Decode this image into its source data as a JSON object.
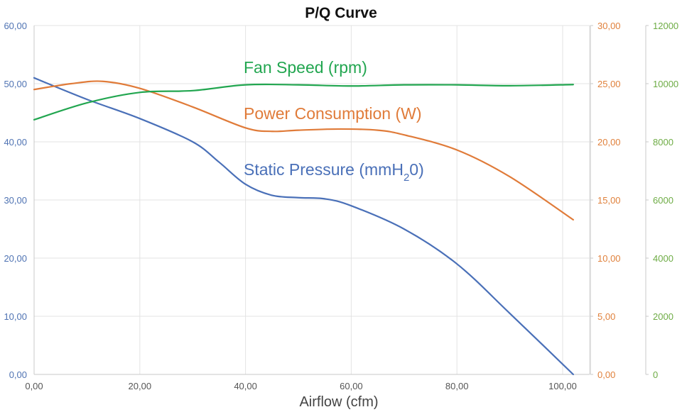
{
  "chart_data": {
    "type": "line",
    "title": "P/Q Curve",
    "xlabel": "Airflow (cfm)",
    "xlim": [
      0,
      105
    ],
    "x_ticks": [
      "0,00",
      "20,00",
      "40,00",
      "60,00",
      "80,00",
      "100,00"
    ],
    "x_tick_values": [
      0,
      20,
      40,
      60,
      80,
      100
    ],
    "grid": true,
    "legend": "inline labels",
    "axes": {
      "left": {
        "ylim": [
          0,
          60
        ],
        "ticks": [
          "0,00",
          "10,00",
          "20,00",
          "30,00",
          "40,00",
          "50,00",
          "60,00"
        ],
        "tick_values": [
          0,
          10,
          20,
          30,
          40,
          50,
          60
        ],
        "color": "#4f73b3"
      },
      "right1": {
        "ylim": [
          0,
          30
        ],
        "ticks": [
          "0,00",
          "5,00",
          "10,00",
          "15,00",
          "20,00",
          "25,00",
          "30,00"
        ],
        "tick_values": [
          0,
          5,
          10,
          15,
          20,
          25,
          30
        ],
        "color": "#e0813c"
      },
      "right2": {
        "ylim": [
          0,
          12000
        ],
        "ticks": [
          "0",
          "2000",
          "4000",
          "6000",
          "8000",
          "10000",
          "12000"
        ],
        "tick_values": [
          0,
          2000,
          4000,
          6000,
          8000,
          10000,
          12000
        ],
        "color": "#6eac45"
      }
    },
    "series": [
      {
        "name": "Static Pressure (mmH20)",
        "label_main": "Static Pressure (mmH",
        "label_sub": "2",
        "label_tail": "0)",
        "axis": "left",
        "color": "#4a70b8",
        "x": [
          0,
          10,
          20,
          30,
          35,
          40,
          45,
          50,
          55,
          60,
          70,
          80,
          90,
          102
        ],
        "y": [
          51,
          47.3,
          44,
          40,
          36.5,
          32.7,
          30.8,
          30.4,
          30.2,
          29,
          25,
          19,
          10.5,
          0
        ]
      },
      {
        "name": "Power Consumption (W)",
        "label_main": "Power Consumption (W)",
        "axis": "right1",
        "color": "#e07b39",
        "x": [
          0,
          7,
          13,
          20,
          30,
          40,
          45,
          50,
          58,
          65,
          70,
          80,
          90,
          102
        ],
        "y": [
          24.5,
          25.0,
          25.2,
          24.6,
          23.0,
          21.2,
          20.9,
          21.0,
          21.1,
          21.0,
          20.6,
          19.3,
          17.0,
          13.3
        ]
      },
      {
        "name": "Fan Speed (rpm)",
        "label_main": "Fan Speed (rpm)",
        "axis": "right2",
        "color": "#22a650",
        "x": [
          0,
          10,
          20,
          30,
          40,
          50,
          60,
          70,
          80,
          90,
          102
        ],
        "y": [
          8760,
          9340,
          9700,
          9760,
          9960,
          9960,
          9920,
          9960,
          9960,
          9930,
          9970
        ]
      }
    ]
  }
}
